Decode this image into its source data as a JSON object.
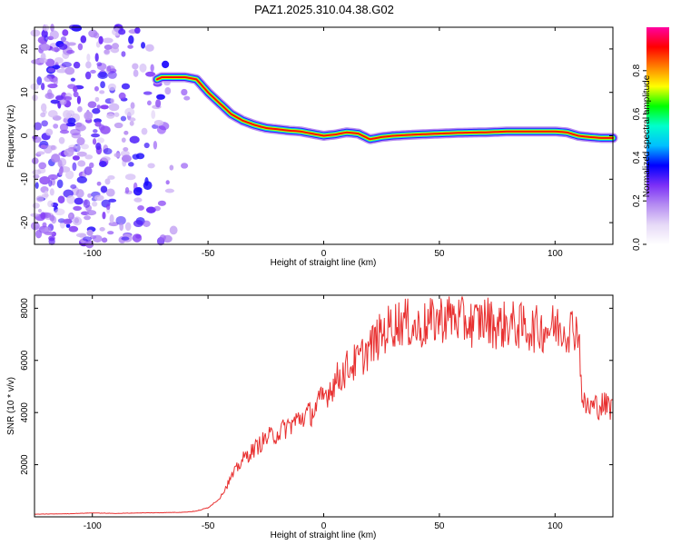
{
  "title": "PAZ1.2025.310.04.38.G02",
  "chart_data": [
    {
      "type": "heatmap",
      "name": "spectrogram",
      "xlabel": "Height of straight line (km)",
      "ylabel": "Frequency (Hz)",
      "xlim": [
        -125,
        125
      ],
      "ylim": [
        -25,
        25
      ],
      "xticks": [
        -100,
        -50,
        0,
        50,
        100
      ],
      "yticks": [
        -20,
        -10,
        0,
        10,
        20
      ],
      "colorbar": {
        "label": "Normalized spectral amplitude",
        "range": [
          0,
          1
        ],
        "ticks": [
          0.0,
          0.2,
          0.4,
          0.6,
          0.8
        ],
        "colormap": [
          "#ffffff",
          "#e6d9f7",
          "#b58cf2",
          "#7b2ff7",
          "#0000ff",
          "#00bfff",
          "#00ffcc",
          "#00ff00",
          "#ffff00",
          "#ff8000",
          "#ff0000",
          "#ff00a0"
        ]
      },
      "signal_track": {
        "x": [
          -72,
          -70,
          -65,
          -60,
          -55,
          -50,
          -45,
          -40,
          -35,
          -30,
          -25,
          -20,
          -15,
          -10,
          -5,
          0,
          5,
          10,
          15,
          20,
          25,
          30,
          40,
          50,
          60,
          70,
          80,
          90,
          100,
          105,
          110,
          115,
          120,
          125
        ],
        "y": [
          13,
          13.5,
          13.5,
          13.5,
          13,
          10,
          7.5,
          5,
          3.5,
          2.5,
          1.8,
          1.5,
          1.2,
          1,
          0.5,
          0,
          0.3,
          0.8,
          0.5,
          -0.8,
          -0.3,
          0,
          0.3,
          0.5,
          0.7,
          0.8,
          1,
          1,
          1,
          0.8,
          0,
          -0.3,
          -0.5,
          -0.5
        ],
        "peak_amplitude": 0.9
      },
      "noise_region": {
        "x_range": [
          -125,
          -55
        ],
        "amplitude_range": [
          0.1,
          0.35
        ]
      }
    },
    {
      "type": "line",
      "name": "snr",
      "xlabel": "Height of straight line (km)",
      "ylabel": "SNR (10 * v/v)",
      "xlim": [
        -125,
        125
      ],
      "ylim": [
        0,
        8500
      ],
      "xticks": [
        -100,
        -50,
        0,
        50,
        100
      ],
      "yticks": [
        2000,
        4000,
        6000,
        8000
      ],
      "color": "#e83030",
      "x": [
        -125,
        -110,
        -100,
        -90,
        -80,
        -70,
        -60,
        -55,
        -50,
        -45,
        -40,
        -35,
        -30,
        -25,
        -20,
        -15,
        -10,
        -5,
        0,
        5,
        10,
        15,
        20,
        25,
        30,
        35,
        40,
        45,
        50,
        55,
        60,
        65,
        70,
        75,
        80,
        85,
        90,
        95,
        100,
        105,
        110,
        112,
        115,
        120,
        125
      ],
      "y": [
        100,
        120,
        150,
        130,
        150,
        160,
        180,
        220,
        350,
        700,
        1500,
        2200,
        2600,
        3000,
        3200,
        3500,
        3800,
        4000,
        4600,
        5200,
        5700,
        6000,
        6500,
        7000,
        7400,
        7500,
        7200,
        7400,
        7600,
        7700,
        7500,
        7400,
        7600,
        7300,
        7400,
        7300,
        7200,
        7200,
        7300,
        7200,
        7300,
        4300,
        4200,
        4300,
        4200
      ],
      "noise_amplitude": 0.08
    }
  ]
}
